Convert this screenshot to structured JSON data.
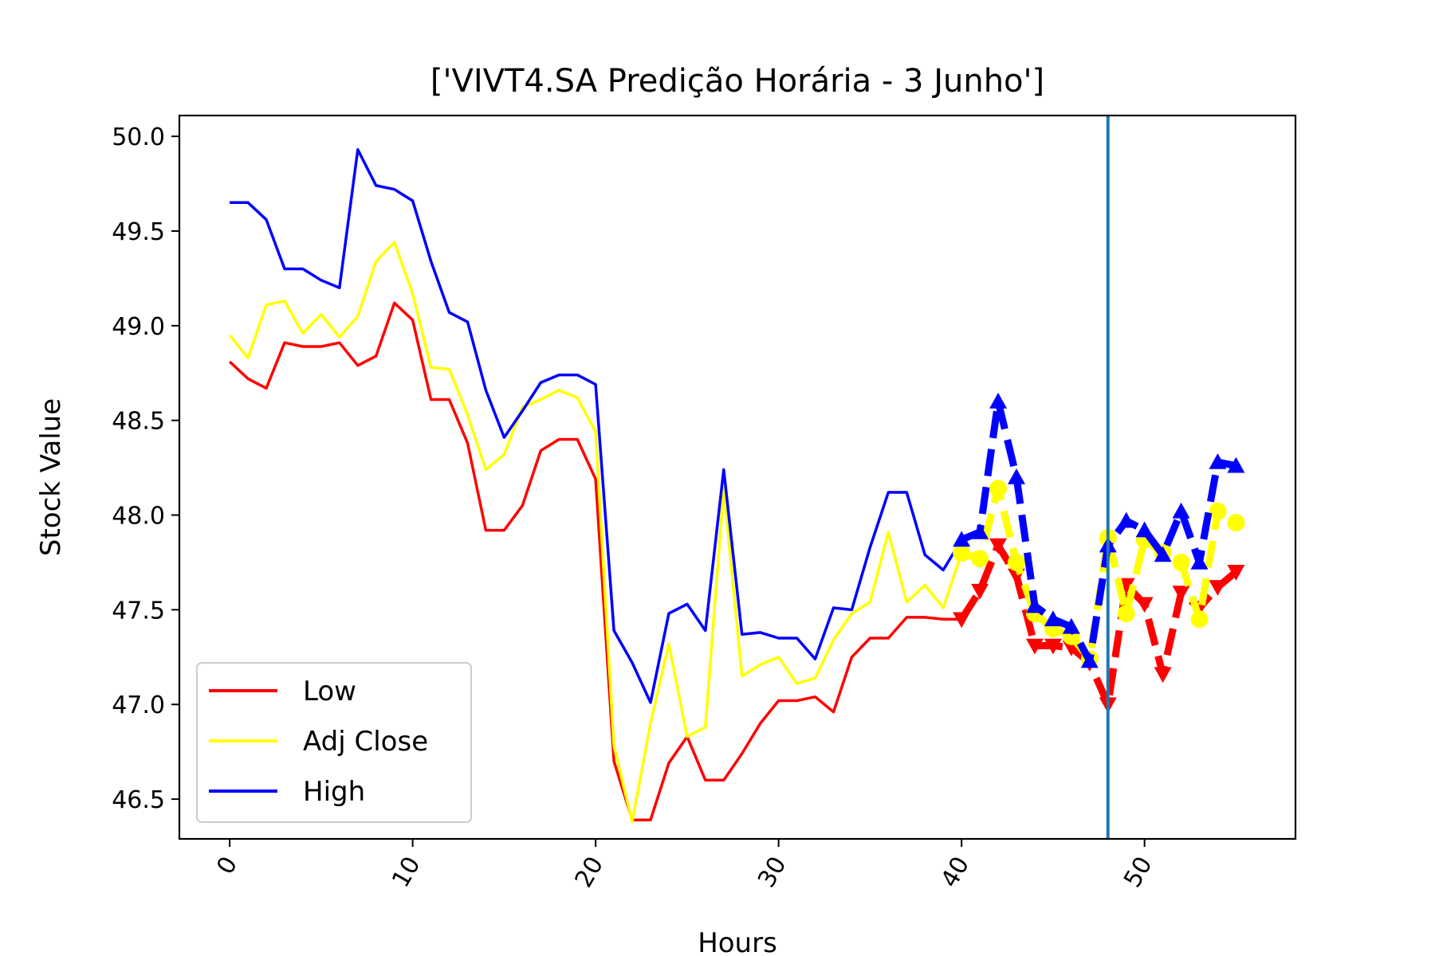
{
  "chart_data": {
    "type": "line",
    "title": "['VIVT4.SA Predição Horária - 3 Junho']",
    "xlabel": "Hours",
    "ylabel": "Stock Value",
    "xlim": [
      -2.75,
      58.25
    ],
    "ylim": [
      46.29,
      50.11
    ],
    "xticks": [
      0,
      10,
      20,
      30,
      40,
      50
    ],
    "yticks": [
      46.5,
      47.0,
      47.5,
      48.0,
      48.5,
      49.0,
      49.5,
      50.0
    ],
    "ytick_labels": [
      "46.5",
      "47.0",
      "47.5",
      "48.0",
      "48.5",
      "49.0",
      "49.5",
      "50.0"
    ],
    "vline_x": 48,
    "vline_color": "#1f77b4",
    "legend_position": "lower left",
    "grid": false,
    "series": [
      {
        "name": "Low",
        "color": "#ff0000",
        "values": [
          48.81,
          48.72,
          48.67,
          48.91,
          48.89,
          48.89,
          48.91,
          48.79,
          48.84,
          49.12,
          49.03,
          48.61,
          48.61,
          48.38,
          47.92,
          47.92,
          48.05,
          48.34,
          48.4,
          48.4,
          48.19,
          46.7,
          46.39,
          46.39,
          46.69,
          46.83,
          46.6,
          46.6,
          46.74,
          46.9,
          47.02,
          47.02,
          47.04,
          46.96,
          47.25,
          47.35,
          47.35,
          47.46,
          47.46,
          47.45,
          47.45
        ]
      },
      {
        "name": "Adj Close",
        "color": "#ffff00",
        "values": [
          48.95,
          48.83,
          49.11,
          49.13,
          48.96,
          49.06,
          48.94,
          49.05,
          49.34,
          49.44,
          49.17,
          48.78,
          48.77,
          48.53,
          48.24,
          48.32,
          48.57,
          48.61,
          48.66,
          48.62,
          48.44,
          46.78,
          46.38,
          46.9,
          47.32,
          46.83,
          46.88,
          48.14,
          47.15,
          47.21,
          47.25,
          47.11,
          47.14,
          47.34,
          47.48,
          47.54,
          47.91,
          47.54,
          47.63,
          47.51,
          47.8
        ]
      },
      {
        "name": "High",
        "color": "#0000ff",
        "values": [
          49.65,
          49.65,
          49.56,
          49.3,
          49.3,
          49.24,
          49.2,
          49.93,
          49.74,
          49.72,
          49.66,
          49.34,
          49.07,
          49.02,
          48.66,
          48.41,
          48.55,
          48.7,
          48.74,
          48.74,
          48.69,
          47.39,
          47.22,
          47.01,
          47.48,
          47.53,
          47.39,
          48.24,
          47.37,
          47.38,
          47.35,
          47.35,
          47.24,
          47.51,
          47.5,
          47.83,
          48.12,
          48.12,
          47.79,
          47.71,
          47.87
        ]
      }
    ],
    "predictions": [
      {
        "name": "Low",
        "color": "#ff0000",
        "marker": "triangle-down",
        "x": [
          40,
          41,
          42,
          43,
          44,
          45,
          46,
          47,
          48,
          49,
          50,
          51,
          52,
          53,
          54,
          55
        ],
        "values": [
          47.45,
          47.6,
          47.84,
          47.68,
          47.31,
          47.31,
          47.3,
          47.22,
          47.0,
          47.63,
          47.53,
          47.16,
          47.59,
          47.51,
          47.62,
          47.7
        ]
      },
      {
        "name": "Adj Close",
        "color": "#ffff00",
        "marker": "circle",
        "x": [
          40,
          41,
          42,
          43,
          44,
          45,
          46,
          47,
          48,
          49,
          50,
          51,
          52,
          53,
          54,
          55
        ],
        "values": [
          47.8,
          47.77,
          48.14,
          47.75,
          47.48,
          47.4,
          47.36,
          47.24,
          47.88,
          47.48,
          47.87,
          47.8,
          47.75,
          47.45,
          48.02,
          47.96
        ]
      },
      {
        "name": "High",
        "color": "#0000ff",
        "marker": "triangle-up",
        "x": [
          40,
          41,
          42,
          43,
          44,
          45,
          46,
          47,
          48,
          49,
          50,
          51,
          52,
          53,
          54,
          55
        ],
        "values": [
          47.87,
          47.91,
          48.6,
          48.2,
          47.52,
          47.45,
          47.41,
          47.23,
          47.84,
          47.97,
          47.92,
          47.79,
          48.02,
          47.75,
          48.28,
          48.26
        ]
      }
    ]
  }
}
